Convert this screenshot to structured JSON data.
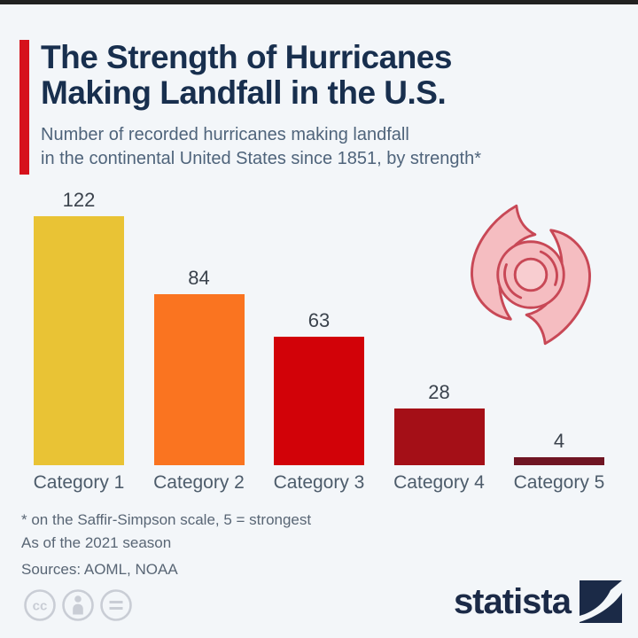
{
  "page": {
    "background_color": "#f3f6f9",
    "top_strip_color": "#212121"
  },
  "header": {
    "title": "The Strength of Hurricanes\nMaking Landfall in the U.S.",
    "subtitle": "Number of recorded hurricanes making landfall\nin the continental United States since 1851, by strength*",
    "accent_color": "#d6121c",
    "title_color": "#182f4e",
    "subtitle_color": "#4f647b"
  },
  "chart_data": {
    "type": "bar",
    "title": "The Strength of Hurricanes Making Landfall in the U.S.",
    "subtitle": "Number of recorded hurricanes making landfall in the continental United States since 1851, by strength*",
    "categories": [
      "Category 1",
      "Category 2",
      "Category 3",
      "Category 4",
      "Category 5"
    ],
    "values": [
      122,
      84,
      63,
      28,
      4
    ],
    "bar_colors": [
      "#e9c335",
      "#fa7420",
      "#d20208",
      "#a40f17",
      "#6f1523"
    ],
    "xlabel": "",
    "ylabel": "",
    "ylim": [
      0,
      122
    ],
    "grid": false,
    "legend": "none",
    "value_labels_shown": true
  },
  "icons": {
    "hurricane": {
      "fill": "#f5bdc1",
      "stroke": "#c84856"
    },
    "license": [
      "cc-icon",
      "attribution-icon",
      "no-derivatives-icon"
    ],
    "license_color": "#c9cdd5"
  },
  "footnotes": {
    "line1": "* on the Saffir-Simpson scale, 5 = strongest",
    "line2": "As of the 2021 season",
    "sources": "Sources: AOML, NOAA"
  },
  "branding": {
    "logo_text": "statista",
    "logo_color": "#1b2a47"
  }
}
